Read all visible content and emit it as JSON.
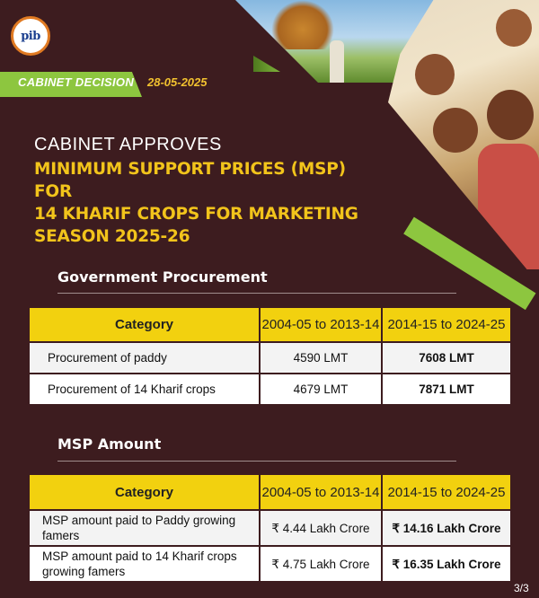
{
  "logo": {
    "text": "pib"
  },
  "band": {
    "label": "CABINET DECISION",
    "date": "28-05-2025"
  },
  "headline": {
    "intro": "CABINET APPROVES",
    "line1": "MINIMUM SUPPORT PRICES (MSP) FOR",
    "line2": "14 KHARIF CROPS FOR MARKETING",
    "line3": "SEASON 2025-26"
  },
  "procurement": {
    "title": "Government Procurement",
    "headers": [
      "Category",
      "2004-05 to 2013-14",
      "2014-15 to 2024-25"
    ],
    "rows": [
      [
        "Procurement of paddy",
        "4590 LMT",
        "7608 LMT"
      ],
      [
        "Procurement of 14 Kharif crops",
        "4679 LMT",
        "7871 LMT"
      ]
    ]
  },
  "msp": {
    "title": "MSP Amount",
    "headers": [
      "Category",
      "2004-05 to 2013-14",
      "2014-15 to 2024-25"
    ],
    "rows": [
      [
        "MSP amount paid to Paddy growing famers",
        "₹ 4.44 Lakh Crore",
        "₹ 14.16 Lakh Crore"
      ],
      [
        "MSP amount paid to 14 Kharif crops growing famers",
        "₹ 4.75 Lakh Crore",
        "₹ 16.35 Lakh Crore"
      ]
    ]
  },
  "page": "3/3",
  "colors": {
    "background": "#3d1c1f",
    "accent_green": "#8dc63f",
    "headline_yellow": "#f2c41b",
    "table_header": "#f2d10f"
  }
}
